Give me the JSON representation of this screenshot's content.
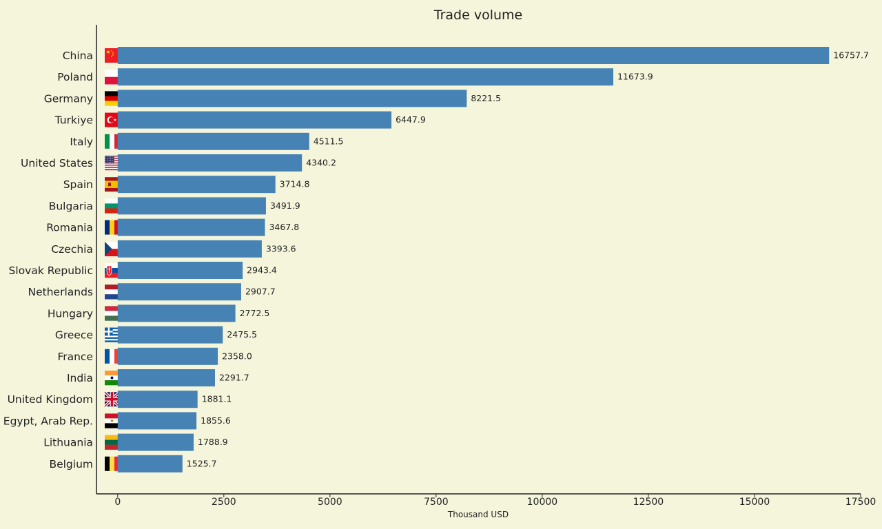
{
  "chart_data": {
    "type": "bar",
    "orientation": "horizontal",
    "title": "Trade volume",
    "xlabel": "Thousand USD",
    "ylabel": "",
    "xlim": [
      -500,
      17500
    ],
    "xticks": [
      0,
      2500,
      5000,
      7500,
      10000,
      12500,
      15000,
      17500
    ],
    "categories": [
      "China",
      "Poland",
      "Germany",
      "Turkiye",
      "Italy",
      "United States",
      "Spain",
      "Bulgaria",
      "Romania",
      "Czechia",
      "Slovak Republic",
      "Netherlands",
      "Hungary",
      "Greece",
      "France",
      "India",
      "United Kingdom",
      "Egypt, Arab Rep.",
      "Lithuania",
      "Belgium"
    ],
    "values": [
      16757.7,
      11673.9,
      8221.5,
      6447.9,
      4511.5,
      4340.2,
      3714.8,
      3491.9,
      3467.8,
      3393.6,
      2943.4,
      2907.7,
      2772.5,
      2475.5,
      2358.0,
      2291.7,
      1881.1,
      1855.6,
      1788.9,
      1525.7
    ],
    "value_labels": [
      "16757.7",
      "11673.9",
      "8221.5",
      "6447.9",
      "4511.5",
      "4340.2",
      "3714.8",
      "3491.9",
      "3467.8",
      "3393.6",
      "2943.4",
      "2907.7",
      "2772.5",
      "2475.5",
      "2358.0",
      "2291.7",
      "1881.1",
      "1855.6",
      "1788.9",
      "1525.7"
    ],
    "flag_icons": [
      "china-flag-icon",
      "poland-flag-icon",
      "germany-flag-icon",
      "turkiye-flag-icon",
      "italy-flag-icon",
      "united-states-flag-icon",
      "spain-flag-icon",
      "bulgaria-flag-icon",
      "romania-flag-icon",
      "czechia-flag-icon",
      "slovak-republic-flag-icon",
      "netherlands-flag-icon",
      "hungary-flag-icon",
      "greece-flag-icon",
      "france-flag-icon",
      "india-flag-icon",
      "united-kingdom-flag-icon",
      "egypt-flag-icon",
      "lithuania-flag-icon",
      "belgium-flag-icon"
    ],
    "grid": false,
    "legend": "none",
    "bar_color": "#4682b4",
    "background_color": "#f5f5dc",
    "axis_color": "#222222",
    "text_color": "#222222"
  }
}
